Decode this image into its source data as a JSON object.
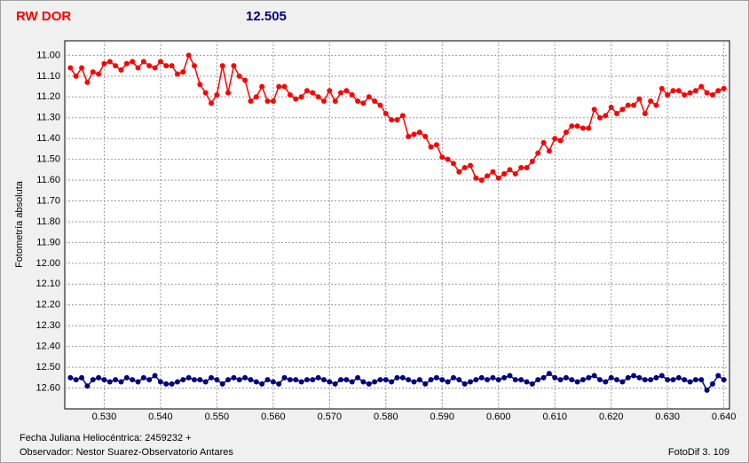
{
  "chart_data": {
    "type": "line",
    "title": "RW DOR",
    "subtitle": "12.505",
    "y_label": "Fotometría absoluta",
    "x_label": "Fecha Juliana Heliocéntrica: 2459232 +",
    "annotations": [
      "Observador: Nestor Suarez-Observatorio Antares",
      "FotoDif 3. 109"
    ],
    "y_inverted": true,
    "grid": true,
    "xlim": [
      0.523,
      0.641
    ],
    "ylim": [
      10.93,
      12.7
    ],
    "xticks": [
      {
        "value": 0.53,
        "label": "0.530"
      },
      {
        "value": 0.54,
        "label": "0.540"
      },
      {
        "value": 0.55,
        "label": "0.550"
      },
      {
        "value": 0.56,
        "label": "0.560"
      },
      {
        "value": 0.57,
        "label": "0.570"
      },
      {
        "value": 0.58,
        "label": "0.580"
      },
      {
        "value": 0.59,
        "label": "0.590"
      },
      {
        "value": 0.6,
        "label": "0.600"
      },
      {
        "value": 0.61,
        "label": "0.610"
      },
      {
        "value": 0.62,
        "label": "0.620"
      },
      {
        "value": 0.63,
        "label": "0.630"
      },
      {
        "value": 0.64,
        "label": "0.640"
      }
    ],
    "yticks": [
      {
        "value": 11,
        "label": "11.00"
      },
      {
        "value": 11.1,
        "label": "11.10"
      },
      {
        "value": 11.2,
        "label": "11.20"
      },
      {
        "value": 11.3,
        "label": "11.30"
      },
      {
        "value": 11.4,
        "label": "11.40"
      },
      {
        "value": 11.5,
        "label": "11.50"
      },
      {
        "value": 11.6,
        "label": "11.60"
      },
      {
        "value": 11.7,
        "label": "11.70"
      },
      {
        "value": 11.8,
        "label": "11.80"
      },
      {
        "value": 11.9,
        "label": "11.90"
      },
      {
        "value": 12,
        "label": "12.00"
      },
      {
        "value": 12.1,
        "label": "12.10"
      },
      {
        "value": 12.2,
        "label": "12.20"
      },
      {
        "value": 12.3,
        "label": "12.30"
      },
      {
        "value": 12.4,
        "label": "12.40"
      },
      {
        "value": 12.5,
        "label": "12.50"
      },
      {
        "value": 12.6,
        "label": "12.60"
      }
    ],
    "x": [
      0.524,
      0.525,
      0.526,
      0.527,
      0.528,
      0.529,
      0.53,
      0.531,
      0.532,
      0.533,
      0.534,
      0.535,
      0.536,
      0.537,
      0.538,
      0.539,
      0.54,
      0.541,
      0.542,
      0.543,
      0.544,
      0.545,
      0.546,
      0.547,
      0.548,
      0.549,
      0.55,
      0.551,
      0.552,
      0.553,
      0.554,
      0.555,
      0.556,
      0.557,
      0.558,
      0.559,
      0.56,
      0.561,
      0.562,
      0.563,
      0.564,
      0.565,
      0.566,
      0.567,
      0.568,
      0.569,
      0.57,
      0.571,
      0.572,
      0.573,
      0.574,
      0.575,
      0.576,
      0.577,
      0.578,
      0.579,
      0.58,
      0.581,
      0.582,
      0.583,
      0.584,
      0.585,
      0.586,
      0.587,
      0.588,
      0.589,
      0.59,
      0.591,
      0.592,
      0.593,
      0.594,
      0.595,
      0.596,
      0.597,
      0.598,
      0.599,
      0.6,
      0.601,
      0.602,
      0.603,
      0.604,
      0.605,
      0.606,
      0.607,
      0.608,
      0.609,
      0.61,
      0.611,
      0.612,
      0.613,
      0.614,
      0.615,
      0.616,
      0.617,
      0.618,
      0.619,
      0.62,
      0.621,
      0.622,
      0.623,
      0.624,
      0.625,
      0.626,
      0.627,
      0.628,
      0.629,
      0.63,
      0.631,
      0.632,
      0.633,
      0.634,
      0.635,
      0.636,
      0.637,
      0.638,
      0.639,
      0.64
    ],
    "series": [
      {
        "color": "#ff0000",
        "values": [
          11.06,
          11.1,
          11.06,
          11.13,
          11.08,
          11.09,
          11.04,
          11.03,
          11.05,
          11.07,
          11.04,
          11.03,
          11.06,
          11.03,
          11.05,
          11.06,
          11.03,
          11.05,
          11.05,
          11.09,
          11.08,
          11.0,
          11.05,
          11.14,
          11.18,
          11.23,
          11.19,
          11.05,
          11.18,
          11.05,
          11.1,
          11.12,
          11.22,
          11.2,
          11.15,
          11.22,
          11.22,
          11.15,
          11.15,
          11.19,
          11.21,
          11.2,
          11.17,
          11.18,
          11.2,
          11.22,
          11.17,
          11.22,
          11.18,
          11.17,
          11.19,
          11.22,
          11.23,
          11.2,
          11.22,
          11.24,
          11.28,
          11.31,
          11.31,
          11.29,
          11.39,
          11.38,
          11.37,
          11.39,
          11.44,
          11.43,
          11.49,
          11.5,
          11.52,
          11.56,
          11.54,
          11.53,
          11.59,
          11.6,
          11.58,
          11.56,
          11.59,
          11.57,
          11.55,
          11.57,
          11.54,
          11.54,
          11.51,
          11.47,
          11.42,
          11.46,
          11.4,
          11.41,
          11.37,
          11.34,
          11.34,
          11.35,
          11.35,
          11.26,
          11.3,
          11.29,
          11.25,
          11.28,
          11.26,
          11.24,
          11.24,
          11.21,
          11.28,
          11.22,
          11.24,
          11.16,
          11.19,
          11.17,
          11.17,
          11.19,
          11.18,
          11.17,
          11.15,
          11.18,
          11.19,
          11.17,
          11.16
        ]
      },
      {
        "color": "#000080",
        "values": [
          12.55,
          12.56,
          12.55,
          12.59,
          12.56,
          12.55,
          12.56,
          12.57,
          12.56,
          12.57,
          12.55,
          12.56,
          12.57,
          12.55,
          12.56,
          12.54,
          12.57,
          12.58,
          12.58,
          12.57,
          12.56,
          12.55,
          12.56,
          12.56,
          12.57,
          12.55,
          12.56,
          12.58,
          12.56,
          12.55,
          12.56,
          12.55,
          12.56,
          12.57,
          12.58,
          12.56,
          12.57,
          12.58,
          12.55,
          12.56,
          12.56,
          12.57,
          12.56,
          12.56,
          12.55,
          12.56,
          12.57,
          12.58,
          12.56,
          12.56,
          12.57,
          12.55,
          12.57,
          12.58,
          12.57,
          12.56,
          12.56,
          12.57,
          12.55,
          12.55,
          12.56,
          12.57,
          12.56,
          12.58,
          12.56,
          12.55,
          12.56,
          12.57,
          12.55,
          12.56,
          12.58,
          12.57,
          12.56,
          12.55,
          12.56,
          12.55,
          12.56,
          12.55,
          12.54,
          12.56,
          12.56,
          12.57,
          12.58,
          12.56,
          12.55,
          12.53,
          12.55,
          12.56,
          12.55,
          12.56,
          12.57,
          12.56,
          12.55,
          12.54,
          12.56,
          12.57,
          12.55,
          12.56,
          12.57,
          12.55,
          12.54,
          12.55,
          12.56,
          12.56,
          12.55,
          12.54,
          12.56,
          12.56,
          12.55,
          12.56,
          12.57,
          12.56,
          12.56,
          12.61,
          12.58,
          12.54,
          12.56
        ]
      }
    ]
  }
}
